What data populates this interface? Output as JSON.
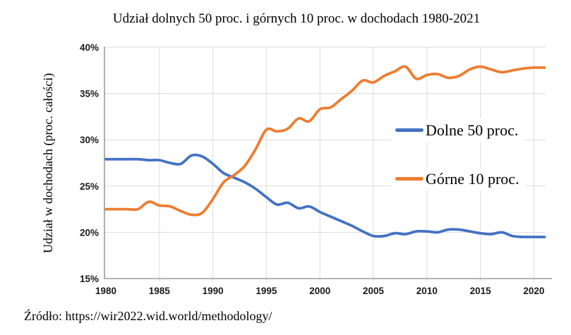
{
  "title": "Udział dolnych 50 proc. i górnych 10 proc. w dochodach 1980-2021",
  "source": "Źródło: https://wir2022.wid.world/methodology/",
  "colors": {
    "bottom50": "#4472C4",
    "top10": "#ED7D31",
    "gridline": "#dcdcdc",
    "axis": "#9b9b9b"
  },
  "legend": {
    "items": [
      {
        "label": "Dolne 50 proc.",
        "color": "#4472C4"
      },
      {
        "label": "Górne 10 proc.",
        "color": "#ED7D31"
      }
    ]
  },
  "chart_data": {
    "type": "line",
    "title": "Udział dolnych 50 proc. i górnych 10 proc. w dochodach 1980-2021",
    "xlabel": "",
    "ylabel": "Udział w dochodach (proc. całości)",
    "xlim": [
      1980,
      2021
    ],
    "ylim": [
      15,
      40
    ],
    "grid": true,
    "legend_position": "center-right",
    "x": [
      1980,
      1981,
      1982,
      1983,
      1984,
      1985,
      1986,
      1987,
      1988,
      1989,
      1990,
      1991,
      1992,
      1993,
      1994,
      1995,
      1996,
      1997,
      1998,
      1999,
      2000,
      2001,
      2002,
      2003,
      2004,
      2005,
      2006,
      2007,
      2008,
      2009,
      2010,
      2011,
      2012,
      2013,
      2014,
      2015,
      2016,
      2017,
      2018,
      2019,
      2020,
      2021
    ],
    "series": [
      {
        "name": "Dolne 50 proc.",
        "color": "#4472C4",
        "values": [
          27.9,
          27.9,
          27.9,
          27.9,
          27.8,
          27.8,
          27.5,
          27.4,
          28.3,
          28.2,
          27.4,
          26.4,
          25.9,
          25.4,
          24.7,
          23.8,
          23.0,
          23.2,
          22.6,
          22.8,
          22.2,
          21.7,
          21.2,
          20.7,
          20.1,
          19.6,
          19.6,
          19.9,
          19.8,
          20.1,
          20.1,
          20.0,
          20.3,
          20.3,
          20.1,
          19.9,
          19.8,
          20.0,
          19.6,
          19.5,
          19.5,
          19.5
        ]
      },
      {
        "name": "Górne 10 proc.",
        "color": "#ED7D31",
        "values": [
          22.5,
          22.5,
          22.5,
          22.5,
          23.3,
          22.9,
          22.8,
          22.3,
          21.9,
          22.1,
          23.6,
          25.4,
          26.2,
          27.2,
          29.0,
          31.1,
          30.9,
          31.2,
          32.3,
          32.0,
          33.3,
          33.5,
          34.4,
          35.3,
          36.4,
          36.2,
          36.9,
          37.4,
          37.9,
          36.6,
          37.0,
          37.1,
          36.7,
          36.9,
          37.6,
          37.9,
          37.6,
          37.3,
          37.5,
          37.7,
          37.8,
          37.8
        ]
      }
    ],
    "x_ticks": [
      {
        "value": 1980,
        "label": "1980"
      },
      {
        "value": 1985,
        "label": "1985"
      },
      {
        "value": 1990,
        "label": "1990"
      },
      {
        "value": 1995,
        "label": "1995"
      },
      {
        "value": 2000,
        "label": "2000"
      },
      {
        "value": 2005,
        "label": "2005"
      },
      {
        "value": 2010,
        "label": "2010"
      },
      {
        "value": 2015,
        "label": "2015"
      },
      {
        "value": 2020,
        "label": "2020"
      }
    ],
    "y_ticks": [
      {
        "value": 40,
        "label": "40%"
      },
      {
        "value": 35,
        "label": "35%"
      },
      {
        "value": 30,
        "label": "30%"
      },
      {
        "value": 25,
        "label": "25%"
      },
      {
        "value": 20,
        "label": "20%"
      },
      {
        "value": 15,
        "label": "15%"
      }
    ]
  }
}
